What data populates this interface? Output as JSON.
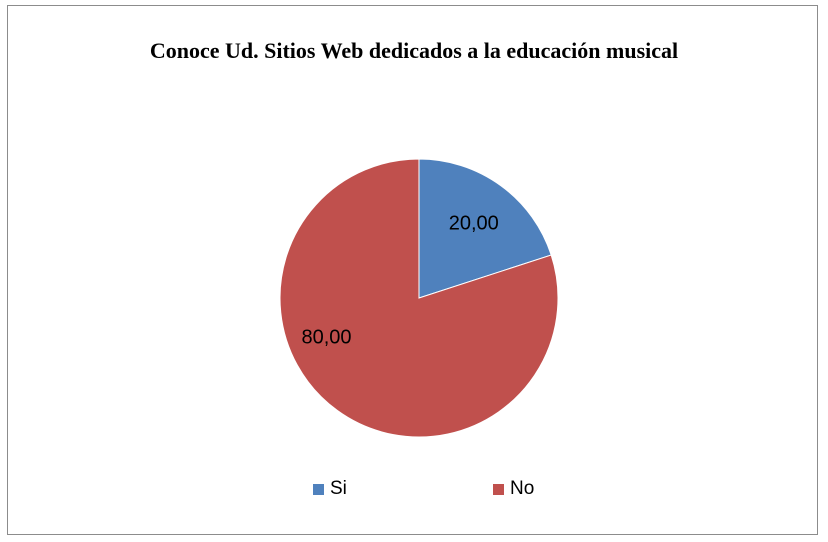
{
  "chart_data": {
    "type": "pie",
    "title": "Conoce Ud. Sitios Web dedicados a la educación musical",
    "categories": [
      "Si",
      "No"
    ],
    "values": [
      20,
      80
    ],
    "data_labels": [
      "20,00",
      "80,00"
    ],
    "colors": [
      "#4f81bd",
      "#c0504d"
    ],
    "legend_position": "bottom"
  }
}
